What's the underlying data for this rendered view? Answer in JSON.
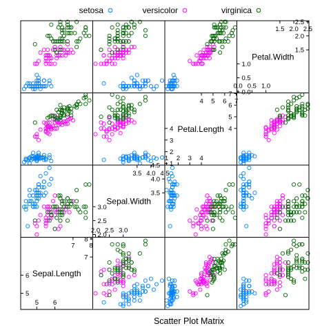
{
  "chart_data": {
    "type": "scatter",
    "title": "",
    "xlabel": "Scatter Plot Matrix",
    "legend_position": "top",
    "variables": [
      "Sepal.Length",
      "Sepal.Width",
      "Petal.Length",
      "Petal.Width"
    ],
    "diagonal_ticks": {
      "Sepal.Length": {
        "upper": [
          "7",
          "8"
        ],
        "lower": [
          "5",
          "6"
        ]
      },
      "Sepal.Width": {
        "upper": [
          "3.5",
          "4.0",
          "4.5"
        ],
        "lower": [
          "2.0",
          "2.5",
          "3.0"
        ]
      },
      "Petal.Length": {
        "upper": [
          "4",
          "5",
          "6",
          "7"
        ],
        "lower": [
          "1",
          "2",
          "3",
          "4"
        ]
      },
      "Petal.Width": {
        "upper": [
          "1.5",
          "2.0",
          "2.5"
        ],
        "lower": [
          "0.0",
          "0.5",
          "1.0"
        ]
      }
    },
    "series": [
      {
        "name": "setosa",
        "color": "#0080ff",
        "points": [
          [
            5.1,
            3.5,
            1.4,
            0.2
          ],
          [
            4.9,
            3.0,
            1.4,
            0.2
          ],
          [
            4.7,
            3.2,
            1.3,
            0.2
          ],
          [
            4.6,
            3.1,
            1.5,
            0.2
          ],
          [
            5.0,
            3.6,
            1.4,
            0.2
          ],
          [
            5.4,
            3.9,
            1.7,
            0.4
          ],
          [
            4.6,
            3.4,
            1.4,
            0.3
          ],
          [
            5.0,
            3.4,
            1.5,
            0.2
          ],
          [
            4.4,
            2.9,
            1.4,
            0.2
          ],
          [
            4.9,
            3.1,
            1.5,
            0.1
          ],
          [
            5.4,
            3.7,
            1.5,
            0.2
          ],
          [
            4.8,
            3.4,
            1.6,
            0.2
          ],
          [
            4.8,
            3.0,
            1.4,
            0.1
          ],
          [
            4.3,
            3.0,
            1.1,
            0.1
          ],
          [
            5.8,
            4.0,
            1.2,
            0.2
          ],
          [
            5.7,
            4.4,
            1.5,
            0.4
          ],
          [
            5.4,
            3.9,
            1.3,
            0.4
          ],
          [
            5.1,
            3.5,
            1.4,
            0.3
          ],
          [
            5.7,
            3.8,
            1.7,
            0.3
          ],
          [
            5.1,
            3.8,
            1.5,
            0.3
          ],
          [
            5.4,
            3.4,
            1.7,
            0.2
          ],
          [
            5.1,
            3.7,
            1.5,
            0.4
          ],
          [
            4.6,
            3.6,
            1.0,
            0.2
          ],
          [
            5.1,
            3.3,
            1.7,
            0.5
          ],
          [
            4.8,
            3.4,
            1.9,
            0.2
          ],
          [
            5.0,
            3.0,
            1.6,
            0.2
          ],
          [
            5.0,
            3.4,
            1.6,
            0.4
          ],
          [
            5.2,
            3.5,
            1.5,
            0.2
          ],
          [
            5.2,
            3.4,
            1.4,
            0.2
          ],
          [
            4.7,
            3.2,
            1.6,
            0.2
          ],
          [
            4.8,
            3.1,
            1.6,
            0.2
          ],
          [
            5.4,
            3.4,
            1.5,
            0.4
          ],
          [
            5.2,
            4.1,
            1.5,
            0.1
          ],
          [
            5.5,
            4.2,
            1.4,
            0.2
          ],
          [
            4.9,
            3.1,
            1.5,
            0.2
          ],
          [
            5.0,
            3.2,
            1.2,
            0.2
          ],
          [
            5.5,
            3.5,
            1.3,
            0.2
          ],
          [
            4.9,
            3.6,
            1.4,
            0.1
          ],
          [
            4.4,
            3.0,
            1.3,
            0.2
          ],
          [
            5.1,
            3.4,
            1.5,
            0.2
          ],
          [
            5.0,
            3.5,
            1.3,
            0.3
          ],
          [
            4.5,
            2.3,
            1.3,
            0.3
          ],
          [
            4.4,
            3.2,
            1.3,
            0.2
          ],
          [
            5.0,
            3.5,
            1.6,
            0.6
          ],
          [
            5.1,
            3.8,
            1.9,
            0.4
          ],
          [
            4.8,
            3.0,
            1.4,
            0.3
          ],
          [
            5.1,
            3.8,
            1.6,
            0.2
          ],
          [
            4.6,
            3.2,
            1.4,
            0.2
          ],
          [
            5.3,
            3.7,
            1.5,
            0.2
          ],
          [
            5.0,
            3.3,
            1.4,
            0.2
          ]
        ]
      },
      {
        "name": "versicolor",
        "color": "#ff00ff",
        "points": [
          [
            7.0,
            3.2,
            4.7,
            1.4
          ],
          [
            6.4,
            3.2,
            4.5,
            1.5
          ],
          [
            6.9,
            3.1,
            4.9,
            1.5
          ],
          [
            5.5,
            2.3,
            4.0,
            1.3
          ],
          [
            6.5,
            2.8,
            4.6,
            1.5
          ],
          [
            5.7,
            2.8,
            4.5,
            1.3
          ],
          [
            6.3,
            3.3,
            4.7,
            1.6
          ],
          [
            4.9,
            2.4,
            3.3,
            1.0
          ],
          [
            6.6,
            2.9,
            4.6,
            1.3
          ],
          [
            5.2,
            2.7,
            3.9,
            1.4
          ],
          [
            5.0,
            2.0,
            3.5,
            1.0
          ],
          [
            5.9,
            3.0,
            4.2,
            1.5
          ],
          [
            6.0,
            2.2,
            4.0,
            1.0
          ],
          [
            6.1,
            2.9,
            4.7,
            1.4
          ],
          [
            5.6,
            2.9,
            3.6,
            1.3
          ],
          [
            6.7,
            3.1,
            4.4,
            1.4
          ],
          [
            5.6,
            3.0,
            4.5,
            1.5
          ],
          [
            5.8,
            2.7,
            4.1,
            1.0
          ],
          [
            6.2,
            2.2,
            4.5,
            1.5
          ],
          [
            5.6,
            2.5,
            3.9,
            1.1
          ],
          [
            5.9,
            3.2,
            4.8,
            1.8
          ],
          [
            6.1,
            2.8,
            4.0,
            1.3
          ],
          [
            6.3,
            2.5,
            4.9,
            1.5
          ],
          [
            6.1,
            2.8,
            4.7,
            1.2
          ],
          [
            6.4,
            2.9,
            4.3,
            1.3
          ],
          [
            6.6,
            3.0,
            4.4,
            1.4
          ],
          [
            6.8,
            2.8,
            4.8,
            1.4
          ],
          [
            6.7,
            3.0,
            5.0,
            1.7
          ],
          [
            6.0,
            2.9,
            4.5,
            1.5
          ],
          [
            5.7,
            2.6,
            3.5,
            1.0
          ],
          [
            5.5,
            2.4,
            3.8,
            1.1
          ],
          [
            5.5,
            2.4,
            3.7,
            1.0
          ],
          [
            5.8,
            2.7,
            3.9,
            1.2
          ],
          [
            6.0,
            2.7,
            5.1,
            1.6
          ],
          [
            5.4,
            3.0,
            4.5,
            1.5
          ],
          [
            6.0,
            3.4,
            4.5,
            1.6
          ],
          [
            6.7,
            3.1,
            4.7,
            1.5
          ],
          [
            6.3,
            2.3,
            4.4,
            1.3
          ],
          [
            5.6,
            3.0,
            4.1,
            1.3
          ],
          [
            5.5,
            2.5,
            4.0,
            1.3
          ],
          [
            5.5,
            2.6,
            4.4,
            1.2
          ],
          [
            6.1,
            3.0,
            4.6,
            1.4
          ],
          [
            5.8,
            2.6,
            4.0,
            1.2
          ],
          [
            5.0,
            2.3,
            3.3,
            1.0
          ],
          [
            5.6,
            2.7,
            4.2,
            1.3
          ],
          [
            5.7,
            3.0,
            4.2,
            1.2
          ],
          [
            5.7,
            2.9,
            4.2,
            1.3
          ],
          [
            6.2,
            2.9,
            4.3,
            1.3
          ],
          [
            5.1,
            2.5,
            3.0,
            1.1
          ],
          [
            5.7,
            2.8,
            4.1,
            1.3
          ]
        ]
      },
      {
        "name": "virginica",
        "color": "#006400",
        "points": [
          [
            6.3,
            3.3,
            6.0,
            2.5
          ],
          [
            5.8,
            2.7,
            5.1,
            1.9
          ],
          [
            7.1,
            3.0,
            5.9,
            2.1
          ],
          [
            6.3,
            2.9,
            5.6,
            1.8
          ],
          [
            6.5,
            3.0,
            5.8,
            2.2
          ],
          [
            7.6,
            3.0,
            6.6,
            2.1
          ],
          [
            4.9,
            2.5,
            4.5,
            1.7
          ],
          [
            7.3,
            2.9,
            6.3,
            1.8
          ],
          [
            6.7,
            2.5,
            5.8,
            1.8
          ],
          [
            7.2,
            3.6,
            6.1,
            2.5
          ],
          [
            6.5,
            3.2,
            5.1,
            2.0
          ],
          [
            6.4,
            2.7,
            5.3,
            1.9
          ],
          [
            6.8,
            3.0,
            5.5,
            2.1
          ],
          [
            5.7,
            2.5,
            5.0,
            2.0
          ],
          [
            5.8,
            2.8,
            5.1,
            2.4
          ],
          [
            6.4,
            3.2,
            5.3,
            2.3
          ],
          [
            6.5,
            3.0,
            5.5,
            1.8
          ],
          [
            7.7,
            3.8,
            6.7,
            2.2
          ],
          [
            7.7,
            2.6,
            6.9,
            2.3
          ],
          [
            6.0,
            2.2,
            5.0,
            1.5
          ],
          [
            6.9,
            3.2,
            5.7,
            2.3
          ],
          [
            5.6,
            2.8,
            4.9,
            2.0
          ],
          [
            7.7,
            2.8,
            6.7,
            2.0
          ],
          [
            6.3,
            2.7,
            4.9,
            1.8
          ],
          [
            6.7,
            3.3,
            5.7,
            2.1
          ],
          [
            7.2,
            3.2,
            6.0,
            1.8
          ],
          [
            6.2,
            2.8,
            4.8,
            1.8
          ],
          [
            6.1,
            3.0,
            4.9,
            1.8
          ],
          [
            6.4,
            2.8,
            5.6,
            2.1
          ],
          [
            7.2,
            3.0,
            5.8,
            1.6
          ],
          [
            7.4,
            2.8,
            6.1,
            1.9
          ],
          [
            7.9,
            3.8,
            6.4,
            2.0
          ],
          [
            6.4,
            2.8,
            5.6,
            2.2
          ],
          [
            6.3,
            2.8,
            5.1,
            1.5
          ],
          [
            6.1,
            2.6,
            5.6,
            1.4
          ],
          [
            7.7,
            3.0,
            6.1,
            2.3
          ],
          [
            6.3,
            3.4,
            5.6,
            2.4
          ],
          [
            6.4,
            3.1,
            5.5,
            1.8
          ],
          [
            6.0,
            3.0,
            4.8,
            1.8
          ],
          [
            6.9,
            3.1,
            5.4,
            2.1
          ],
          [
            6.7,
            3.1,
            5.6,
            2.4
          ],
          [
            6.9,
            3.1,
            5.1,
            2.3
          ],
          [
            5.8,
            2.7,
            5.1,
            1.9
          ],
          [
            6.8,
            3.2,
            5.9,
            2.3
          ],
          [
            6.7,
            3.3,
            5.7,
            2.5
          ],
          [
            6.7,
            3.0,
            5.2,
            2.3
          ],
          [
            6.3,
            2.5,
            5.0,
            1.9
          ],
          [
            6.5,
            3.0,
            5.2,
            2.0
          ],
          [
            6.2,
            3.4,
            5.4,
            2.3
          ],
          [
            5.9,
            3.0,
            5.1,
            1.8
          ]
        ]
      }
    ]
  }
}
